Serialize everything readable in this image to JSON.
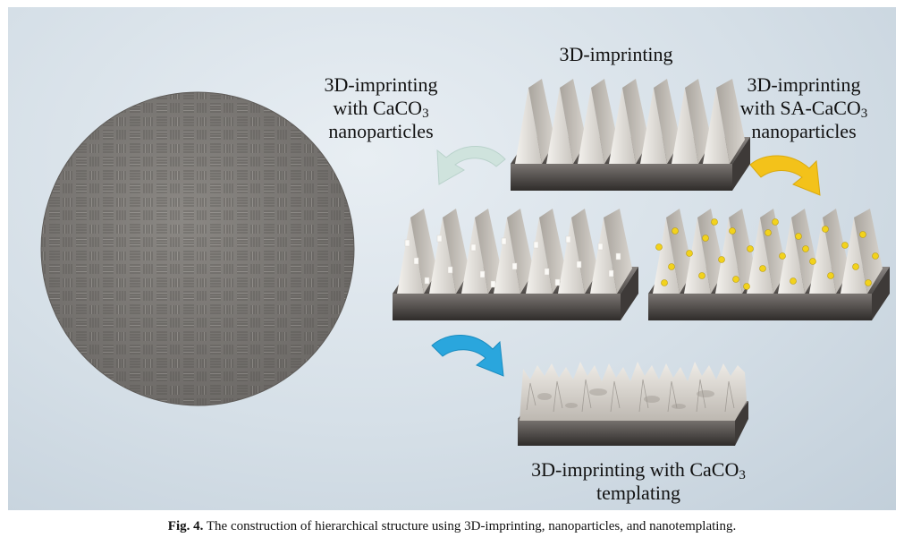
{
  "labels": {
    "top_center": "3D-imprinting",
    "top_left_line1": "3D-imprinting",
    "top_left_line2_prefix": "with CaCO",
    "top_left_line2_sub": "3",
    "top_left_line3": "nanoparticles",
    "top_right_line1": "3D-imprinting",
    "top_right_line2_prefix": "with SA-CaCO",
    "top_right_line2_sub": "3",
    "top_right_line3": "nanoparticles",
    "bottom_line1_prefix": "3D-imprinting with CaCO",
    "bottom_line1_sub": "3",
    "bottom_line2": "templating"
  },
  "caption": {
    "prefix": "Fig. 4.",
    "text": "The construction of hierarchical structure using 3D-imprinting, nanoparticles, and nanotemplating."
  },
  "colors": {
    "arrow_top_left": "#cfe3dd",
    "arrow_top_right": "#f3c21a",
    "arrow_bottom": "#2aa6dd",
    "nanoparticle": "#f2d21c",
    "fabric": "#7d7a77"
  }
}
